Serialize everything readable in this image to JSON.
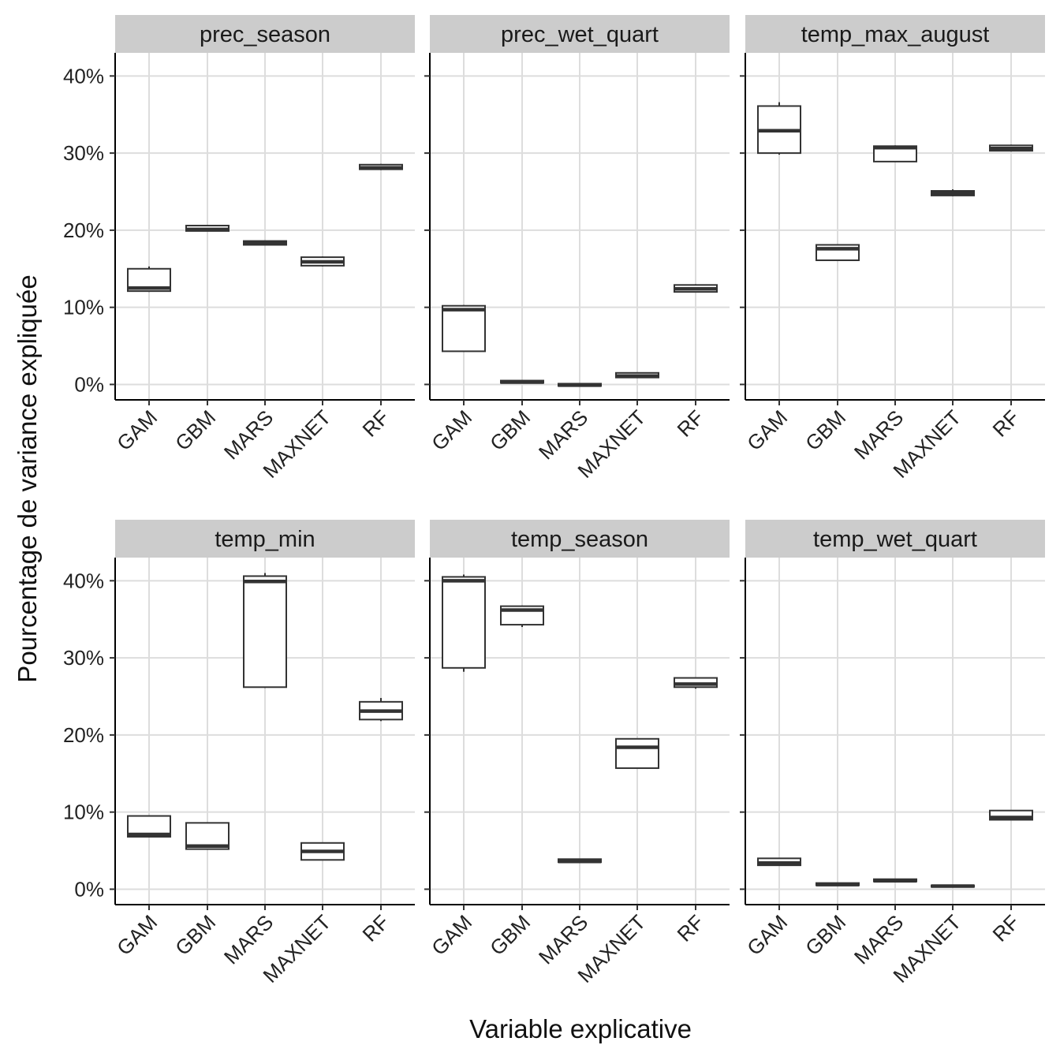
{
  "chart_data": {
    "type": "boxplot",
    "layout": "facet grid, 2 rows x 3 columns",
    "xlabel": "Variable explicative",
    "ylabel": "Pourcentage de variance expliquée",
    "ylim": [
      -2,
      43
    ],
    "y_ticks": [
      0,
      10,
      20,
      30,
      40
    ],
    "y_tick_labels": [
      "0%",
      "10%",
      "20%",
      "30%",
      "40%"
    ],
    "categories": [
      "GAM",
      "GBM",
      "MARS",
      "MAXNET",
      "RF"
    ],
    "grid": true,
    "colors": {
      "strip_fill": "#cccccc",
      "box_stroke": "#333333",
      "grid": "#dddddd"
    },
    "panels": [
      {
        "title": "prec_season",
        "boxes": [
          {
            "category": "GAM",
            "min": 12.0,
            "q1": 12.1,
            "median": 12.5,
            "q3": 15.0,
            "max": 15.3
          },
          {
            "category": "GBM",
            "min": 19.9,
            "q1": 19.9,
            "median": 20.1,
            "q3": 20.6,
            "max": 20.6
          },
          {
            "category": "MARS",
            "min": 18.1,
            "q1": 18.1,
            "median": 18.3,
            "q3": 18.6,
            "max": 18.6
          },
          {
            "category": "MAXNET",
            "min": 15.3,
            "q1": 15.4,
            "median": 15.9,
            "q3": 16.5,
            "max": 16.6
          },
          {
            "category": "RF",
            "min": 27.8,
            "q1": 27.9,
            "median": 28.1,
            "q3": 28.5,
            "max": 28.6
          }
        ]
      },
      {
        "title": "prec_wet_quart",
        "boxes": [
          {
            "category": "GAM",
            "min": 4.3,
            "q1": 4.3,
            "median": 9.7,
            "q3": 10.2,
            "max": 10.3
          },
          {
            "category": "GBM",
            "min": 0.2,
            "q1": 0.2,
            "median": 0.3,
            "q3": 0.5,
            "max": 0.5
          },
          {
            "category": "MARS",
            "min": -0.2,
            "q1": -0.2,
            "median": -0.1,
            "q3": 0.1,
            "max": 0.1
          },
          {
            "category": "MAXNET",
            "min": 0.9,
            "q1": 0.9,
            "median": 1.1,
            "q3": 1.5,
            "max": 1.5
          },
          {
            "category": "RF",
            "min": 12.0,
            "q1": 12.0,
            "median": 12.4,
            "q3": 12.9,
            "max": 13.0
          }
        ]
      },
      {
        "title": "temp_max_august",
        "boxes": [
          {
            "category": "GAM",
            "min": 29.8,
            "q1": 30.0,
            "median": 32.9,
            "q3": 36.1,
            "max": 36.6
          },
          {
            "category": "GBM",
            "min": 16.1,
            "q1": 16.1,
            "median": 17.6,
            "q3": 18.1,
            "max": 18.1
          },
          {
            "category": "MARS",
            "min": 28.9,
            "q1": 28.9,
            "median": 30.7,
            "q3": 30.9,
            "max": 31.0
          },
          {
            "category": "MAXNET",
            "min": 24.4,
            "q1": 24.5,
            "median": 24.8,
            "q3": 25.1,
            "max": 25.3
          },
          {
            "category": "RF",
            "min": 30.2,
            "q1": 30.3,
            "median": 30.6,
            "q3": 31.0,
            "max": 31.1
          }
        ]
      },
      {
        "title": "temp_min",
        "boxes": [
          {
            "category": "GAM",
            "min": 6.8,
            "q1": 6.8,
            "median": 7.1,
            "q3": 9.5,
            "max": 9.5
          },
          {
            "category": "GBM",
            "min": 5.2,
            "q1": 5.2,
            "median": 5.6,
            "q3": 8.6,
            "max": 8.6
          },
          {
            "category": "MARS",
            "min": 26.1,
            "q1": 26.2,
            "median": 39.9,
            "q3": 40.6,
            "max": 41.0
          },
          {
            "category": "MAXNET",
            "min": 3.8,
            "q1": 3.8,
            "median": 4.9,
            "q3": 6.0,
            "max": 6.0
          },
          {
            "category": "RF",
            "min": 21.8,
            "q1": 22.0,
            "median": 23.1,
            "q3": 24.3,
            "max": 24.8
          }
        ]
      },
      {
        "title": "temp_season",
        "boxes": [
          {
            "category": "GAM",
            "min": 28.2,
            "q1": 28.7,
            "median": 40.0,
            "q3": 40.5,
            "max": 40.8
          },
          {
            "category": "GBM",
            "min": 34.0,
            "q1": 34.3,
            "median": 36.2,
            "q3": 36.7,
            "max": 36.8
          },
          {
            "category": "MARS",
            "min": 3.5,
            "q1": 3.5,
            "median": 3.6,
            "q3": 3.9,
            "max": 3.9
          },
          {
            "category": "MAXNET",
            "min": 15.7,
            "q1": 15.7,
            "median": 18.4,
            "q3": 19.5,
            "max": 19.5
          },
          {
            "category": "RF",
            "min": 26.0,
            "q1": 26.2,
            "median": 26.6,
            "q3": 27.4,
            "max": 27.4
          }
        ]
      },
      {
        "title": "temp_wet_quart",
        "boxes": [
          {
            "category": "GAM",
            "min": 3.1,
            "q1": 3.1,
            "median": 3.4,
            "q3": 4.0,
            "max": 4.0
          },
          {
            "category": "GBM",
            "min": 0.5,
            "q1": 0.5,
            "median": 0.6,
            "q3": 0.8,
            "max": 0.8
          },
          {
            "category": "MARS",
            "min": 1.0,
            "q1": 1.0,
            "median": 1.1,
            "q3": 1.3,
            "max": 1.3
          },
          {
            "category": "MAXNET",
            "min": 0.3,
            "q1": 0.3,
            "median": 0.4,
            "q3": 0.5,
            "max": 0.5
          },
          {
            "category": "RF",
            "min": 9.0,
            "q1": 9.0,
            "median": 9.3,
            "q3": 10.2,
            "max": 10.2
          }
        ]
      }
    ]
  }
}
